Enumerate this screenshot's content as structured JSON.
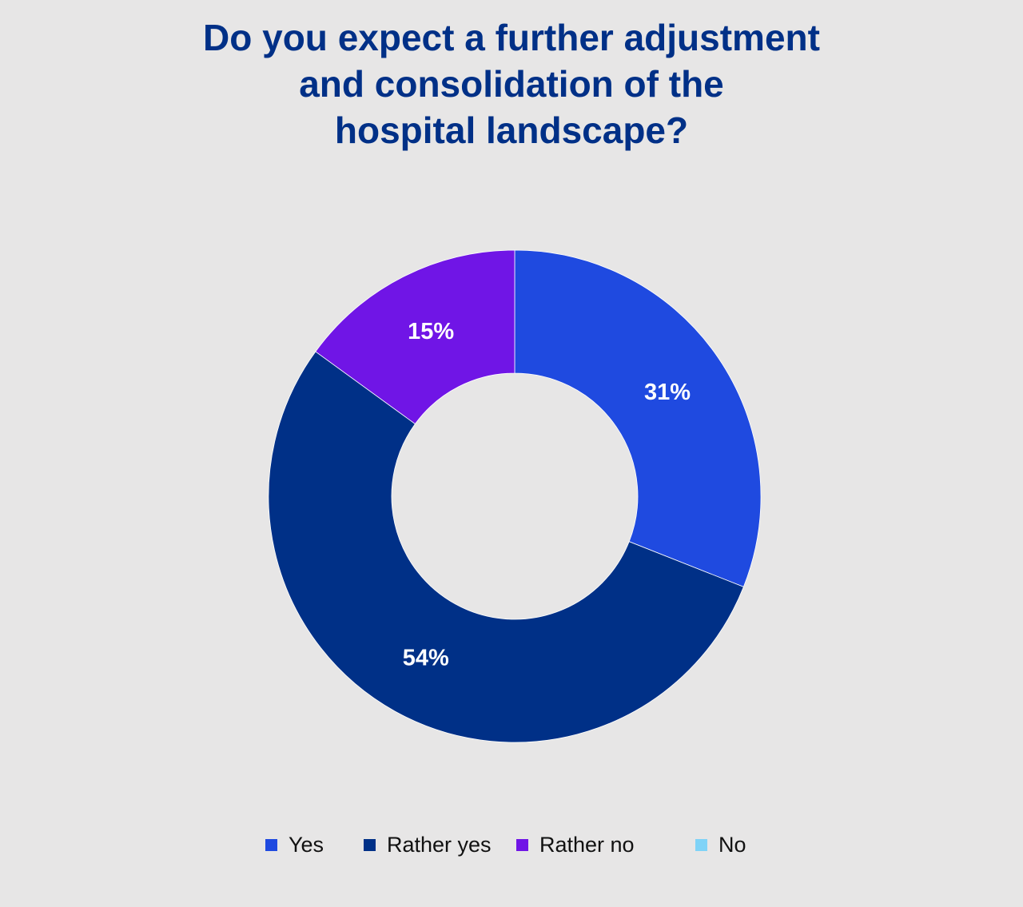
{
  "chart_data": {
    "type": "pie",
    "variant": "donut",
    "title_lines": [
      "Do you expect a further adjustment",
      "and consolidation of the",
      "hospital landscape?"
    ],
    "categories": [
      "Yes",
      "Rather yes",
      "Rather no",
      "No"
    ],
    "values": [
      31,
      54,
      15,
      0
    ],
    "labels": [
      "31%",
      "54%",
      "15%",
      ""
    ],
    "colors": [
      "#1f4ae0",
      "#003087",
      "#7015e6",
      "#7fd3f7"
    ],
    "legend_position": "bottom",
    "grid": false
  }
}
